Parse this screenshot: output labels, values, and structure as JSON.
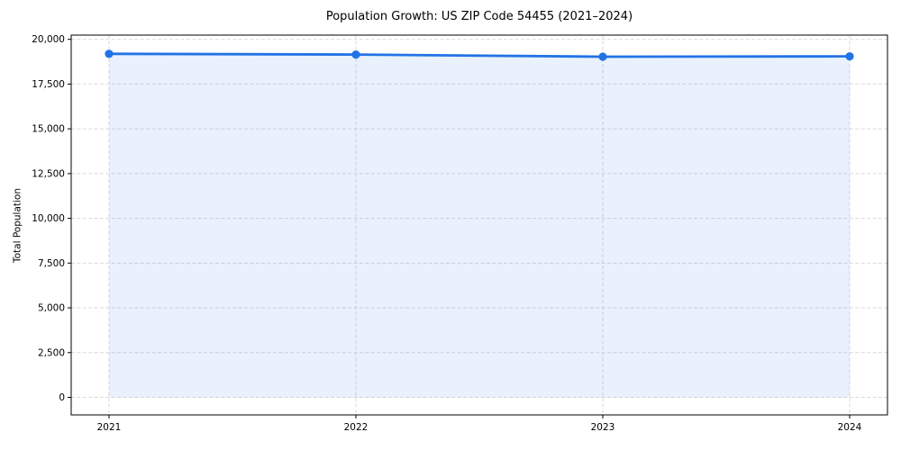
{
  "chart_data": {
    "type": "line",
    "title": "Population Growth: US ZIP Code 54455 (2021–2024)",
    "xlabel": "",
    "ylabel": "Total Population",
    "categories": [
      "2021",
      "2022",
      "2023",
      "2024"
    ],
    "values": [
      19190,
      19150,
      19030,
      19050
    ],
    "series_name": "Total Population",
    "ylim": [
      0,
      20000
    ],
    "yticks": [
      0,
      2500,
      5000,
      7500,
      10000,
      12500,
      15000,
      17500,
      20000
    ],
    "grid": true,
    "grid_style": "dashed",
    "legend_position": "none",
    "marker": "circle",
    "area_fill": true,
    "colors": {
      "line": "#2273e6",
      "area": "rgba(34,115,230,0.10)",
      "grid": "#d9d9d9",
      "spine": "#000000",
      "text": "#000000",
      "background": "#ffffff"
    }
  }
}
